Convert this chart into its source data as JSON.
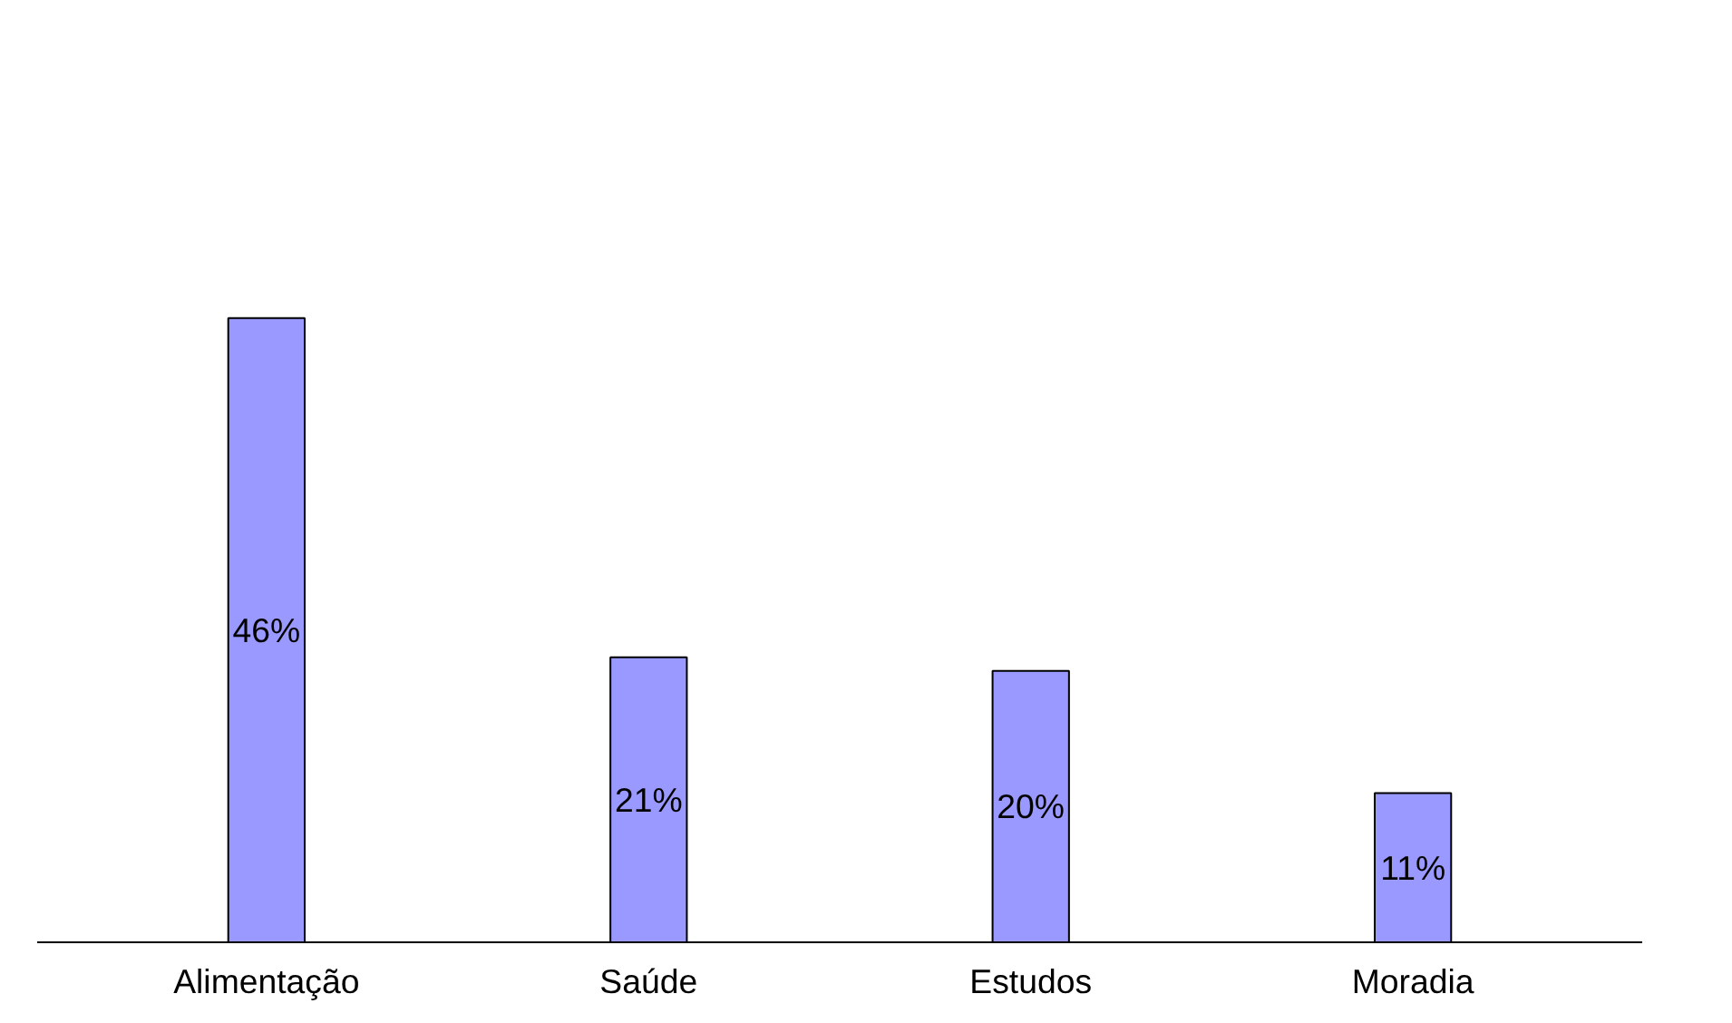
{
  "chart_data": {
    "type": "bar",
    "categories": [
      "Alimentação",
      "Saúde",
      "Estudos",
      "Moradia"
    ],
    "values": [
      46,
      21,
      20,
      11
    ],
    "value_labels": [
      "46%",
      "21%",
      "20%",
      "11%"
    ],
    "color": "#9999ff"
  }
}
